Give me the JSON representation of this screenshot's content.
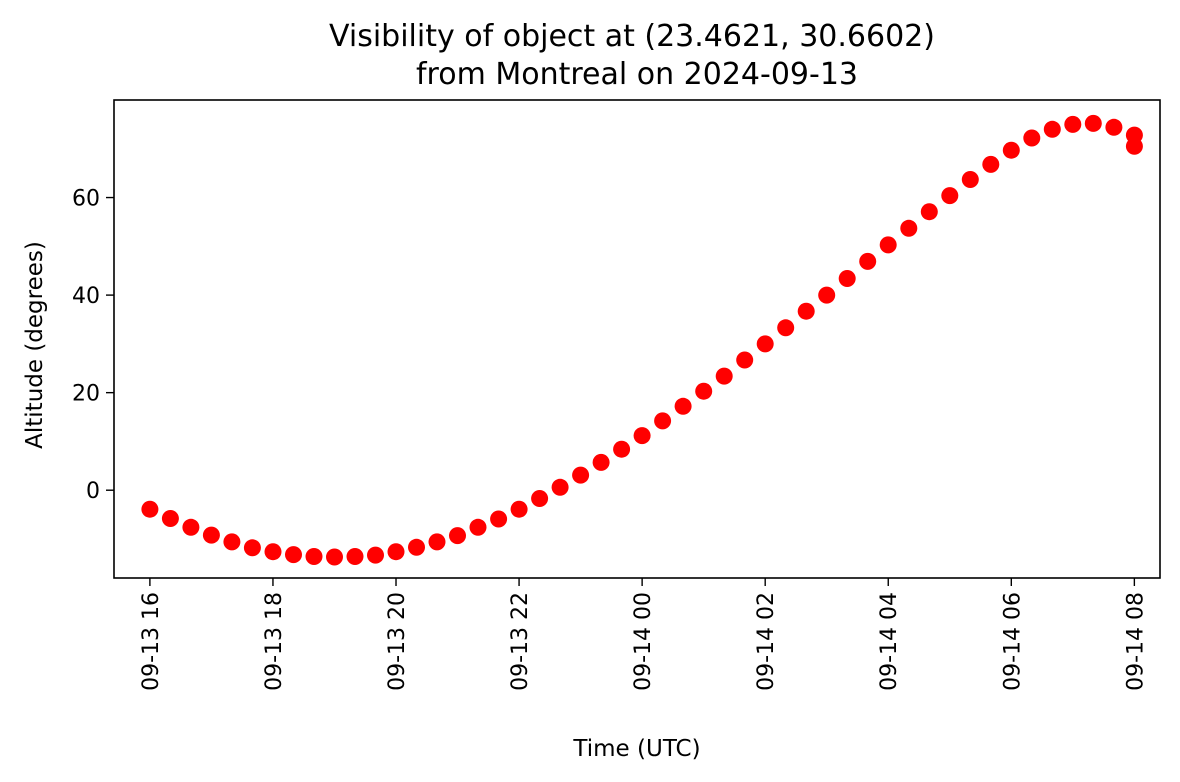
{
  "chart_data": {
    "type": "scatter",
    "title_line1": "Visibility of object at (23.4621, 30.6602)",
    "title_line2": "from Montreal on 2024-09-13",
    "xlabel": "Time (UTC)",
    "ylabel": "Altitude (degrees)",
    "xlim": [
      "2024-09-13 15:25",
      "2024-09-14 08:25"
    ],
    "ylim": [
      -18,
      80
    ],
    "x_ticks": [
      {
        "value": "2024-09-13 16:00",
        "label": "09-13 16"
      },
      {
        "value": "2024-09-13 18:00",
        "label": "09-13 18"
      },
      {
        "value": "2024-09-13 20:00",
        "label": "09-13 20"
      },
      {
        "value": "2024-09-13 22:00",
        "label": "09-13 22"
      },
      {
        "value": "2024-09-14 00:00",
        "label": "09-14 00"
      },
      {
        "value": "2024-09-14 02:00",
        "label": "09-14 02"
      },
      {
        "value": "2024-09-14 04:00",
        "label": "09-14 04"
      },
      {
        "value": "2024-09-14 06:00",
        "label": "09-14 06"
      },
      {
        "value": "2024-09-14 08:00",
        "label": "09-14 08"
      }
    ],
    "y_ticks": [
      {
        "value": 0,
        "label": "0"
      },
      {
        "value": 20,
        "label": "20"
      },
      {
        "value": 40,
        "label": "40"
      },
      {
        "value": 60,
        "label": "60"
      }
    ],
    "grid": false,
    "marker_color": "#ff0000",
    "series": [
      {
        "x": [
          "2024-09-13 16:00",
          "2024-09-13 16:20",
          "2024-09-13 16:40",
          "2024-09-13 17:00",
          "2024-09-13 17:20",
          "2024-09-13 17:40",
          "2024-09-13 18:00",
          "2024-09-13 18:20",
          "2024-09-13 18:40",
          "2024-09-13 19:00",
          "2024-09-13 19:20",
          "2024-09-13 19:40",
          "2024-09-13 20:00",
          "2024-09-13 20:20",
          "2024-09-13 20:40",
          "2024-09-13 21:00",
          "2024-09-13 21:20",
          "2024-09-13 21:40",
          "2024-09-13 22:00",
          "2024-09-13 22:20",
          "2024-09-13 22:40",
          "2024-09-13 23:00",
          "2024-09-13 23:20",
          "2024-09-13 23:40",
          "2024-09-14 00:00",
          "2024-09-14 00:20",
          "2024-09-14 00:40",
          "2024-09-14 01:00",
          "2024-09-14 01:20",
          "2024-09-14 01:40",
          "2024-09-14 02:00",
          "2024-09-14 02:20",
          "2024-09-14 02:40",
          "2024-09-14 03:00",
          "2024-09-14 03:20",
          "2024-09-14 03:40",
          "2024-09-14 04:00",
          "2024-09-14 04:20",
          "2024-09-14 04:40",
          "2024-09-14 05:00",
          "2024-09-14 05:20",
          "2024-09-14 05:40",
          "2024-09-14 06:00",
          "2024-09-14 06:20",
          "2024-09-14 06:40",
          "2024-09-14 07:00",
          "2024-09-14 07:20",
          "2024-09-14 07:40",
          "2024-09-14 08:00"
        ],
        "y": [
          -3.9,
          -5.8,
          -7.6,
          -9.2,
          -10.6,
          -11.8,
          -12.6,
          -13.2,
          -13.6,
          -13.7,
          -13.6,
          -13.3,
          -12.6,
          -11.7,
          -10.6,
          -9.3,
          -7.6,
          -5.9,
          -3.9,
          -1.7,
          0.6,
          3.1,
          5.7,
          8.4,
          11.2,
          14.2,
          17.2,
          20.3,
          23.4,
          26.7,
          30.0,
          33.3,
          36.7,
          40.0,
          43.4,
          46.9,
          50.3,
          53.7,
          57.1,
          60.4,
          63.7,
          66.8,
          69.7,
          72.2,
          74.0,
          75.0,
          75.2,
          74.4,
          72.8
        ]
      }
    ]
  },
  "extra_point": {
    "x": "2024-09-14 08:00",
    "y": 70.5
  }
}
